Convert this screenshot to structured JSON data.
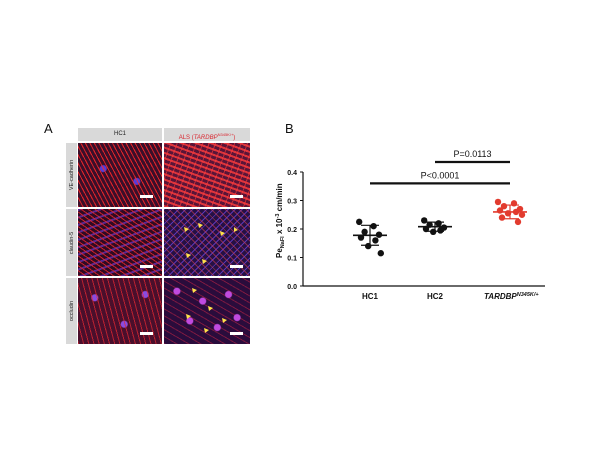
{
  "panels": {
    "a": {
      "letter": "A",
      "columns": [
        "HC1",
        "ALS (",
        "TARDBP",
        "N345K/+",
        ")"
      ],
      "rows": [
        "VE-cadherin",
        "claudin-5",
        "occludin"
      ]
    },
    "b": {
      "letter": "B"
    }
  },
  "chart_data": {
    "type": "scatter",
    "categories": [
      "HC1",
      "HC2",
      "TARDBP N345K/+"
    ],
    "category_labels": {
      "hc1": "HC1",
      "hc2": "HC2",
      "tard_main": "TARDBP",
      "tard_sup": "N345K/+"
    },
    "ylabel": {
      "pe": "Pe",
      "sub": "NaFl",
      "x": " x 10",
      "exp": "-3",
      "unit": " cm/min"
    },
    "ylim": [
      0,
      0.4
    ],
    "yticks": [
      "0.0",
      "0.1",
      "0.2",
      "0.3",
      "0.4"
    ],
    "series": [
      {
        "category": "HC1",
        "color": "#111111",
        "values": [
          0.225,
          0.21,
          0.19,
          0.18,
          0.17,
          0.16,
          0.14,
          0.115
        ],
        "mean": 0.178,
        "sd": 0.035
      },
      {
        "category": "HC2",
        "color": "#111111",
        "values": [
          0.23,
          0.22,
          0.215,
          0.205,
          0.2,
          0.195,
          0.19
        ],
        "mean": 0.208,
        "sd": 0.016
      },
      {
        "category": "TARDBP N345K/+",
        "color": "#e23b2e",
        "values": [
          0.295,
          0.29,
          0.28,
          0.27,
          0.265,
          0.26,
          0.255,
          0.25,
          0.24,
          0.225
        ],
        "mean": 0.26,
        "sd": 0.024
      }
    ],
    "comparisons": [
      {
        "label": "P=0.0113",
        "from": "HC2",
        "to": "TARDBP N345K/+",
        "y": 0.435
      },
      {
        "label": "P<0.0001",
        "from": "HC1",
        "to": "TARDBP N345K/+",
        "y": 0.36
      }
    ]
  }
}
